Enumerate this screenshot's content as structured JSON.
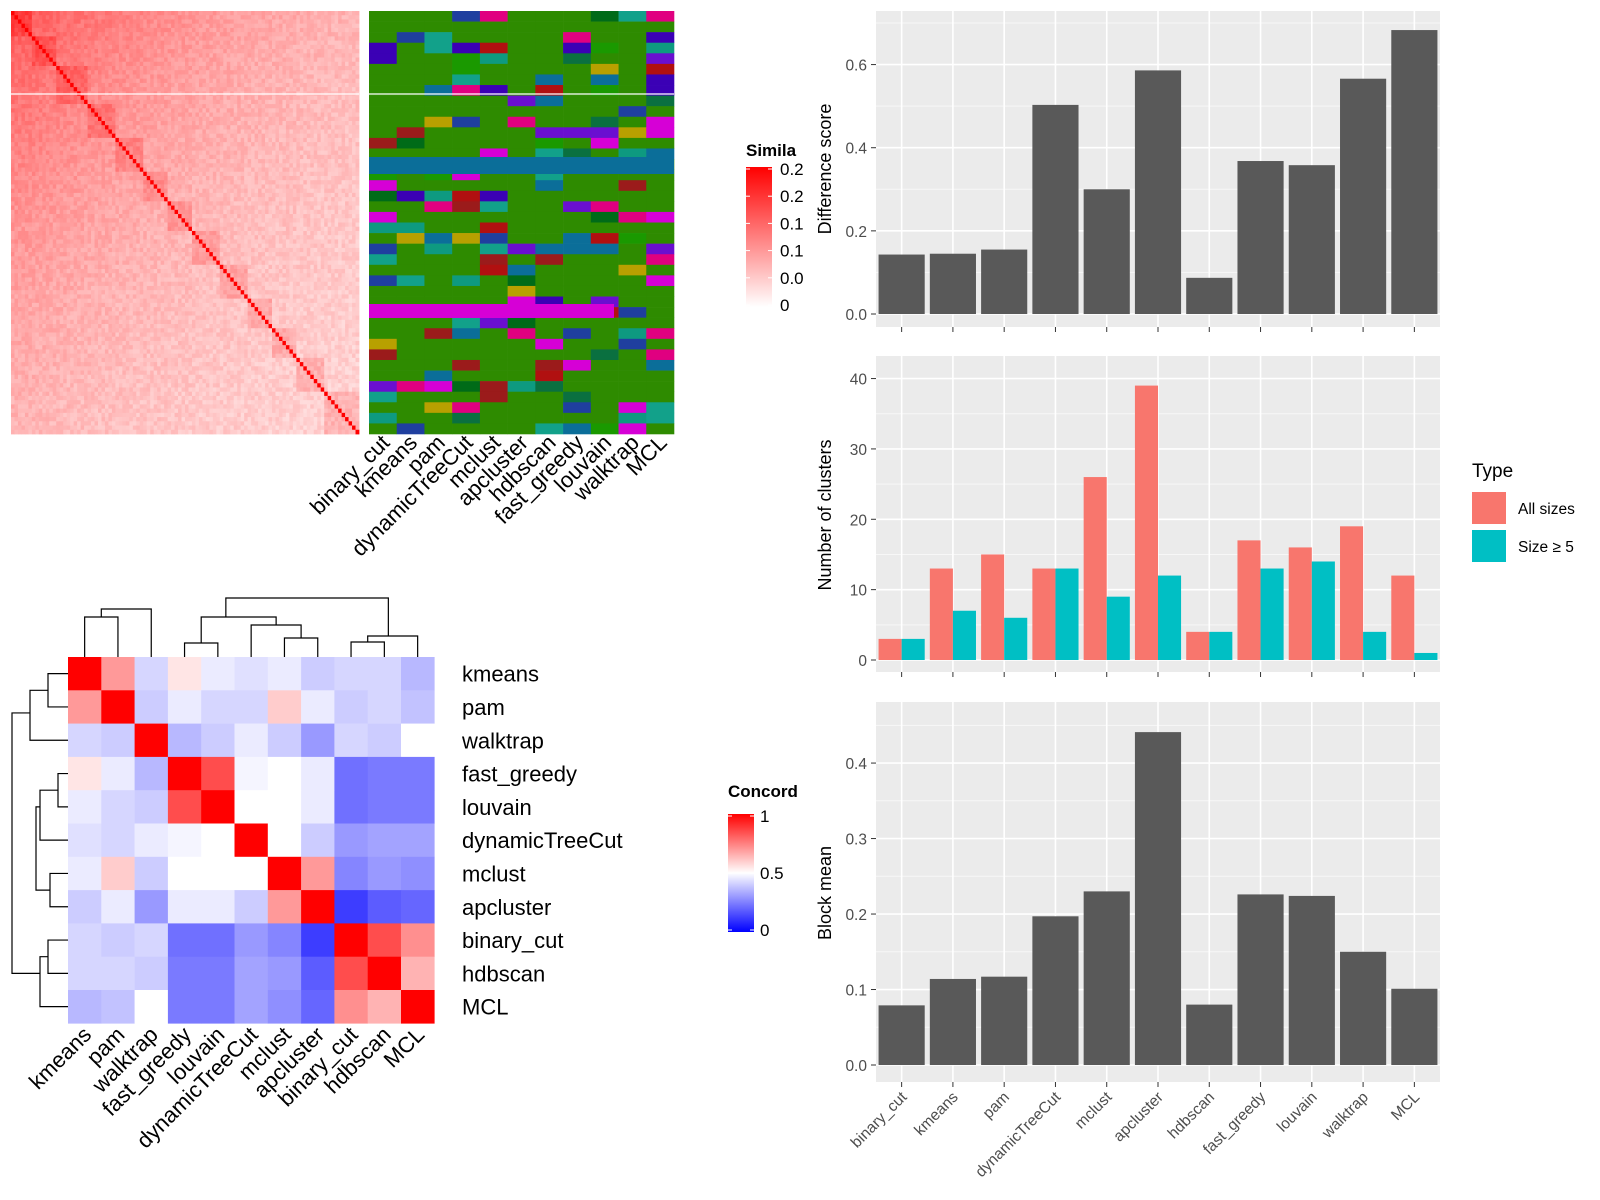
{
  "chart_data": [
    {
      "id": "similarity-heatmap",
      "type": "heatmap",
      "legend": {
        "title": "Simila",
        "ticks": [
          "0.2",
          "0.2",
          "0.1",
          "0.1",
          "0.0",
          "0"
        ],
        "placement": "right",
        "colors": [
          "#ffffff",
          "#ff0000"
        ]
      },
      "columns": [
        "binary_cut",
        "kmeans",
        "pam",
        "dynamicTreeCut",
        "mclust",
        "apcluster",
        "hdbscan",
        "fast_greedy",
        "louvain",
        "walktrap",
        "MCL"
      ],
      "cluster_palette": [
        "#2e8b00",
        "#1a9900",
        "#1f3f9f",
        "#3b00b5",
        "#d600d6",
        "#9b1b1b",
        "#b8a000",
        "#0e9a80",
        "#0b6e99",
        "#006b18",
        "#b11010",
        "#12a18a",
        "#e00080",
        "#6a0fd0",
        "#0a7040"
      ]
    },
    {
      "id": "concordance-heatmap",
      "type": "heatmap",
      "legend": {
        "title": "Concord",
        "ticks": [
          "1",
          "0.5",
          "0"
        ],
        "placement": "right",
        "colors": [
          "#0000ff",
          "#ffffff",
          "#ff0000"
        ]
      },
      "rows": [
        "kmeans",
        "pam",
        "walktrap",
        "fast_greedy",
        "louvain",
        "dynamicTreeCut",
        "mclust",
        "apcluster",
        "binary_cut",
        "hdbscan",
        "MCL"
      ],
      "columns": [
        "kmeans",
        "pam",
        "walktrap",
        "fast_greedy",
        "louvain",
        "dynamicTreeCut",
        "mclust",
        "apcluster",
        "binary_cut",
        "hdbscan",
        "MCL"
      ],
      "values": [
        [
          1.0,
          0.7,
          0.42,
          0.55,
          0.46,
          0.44,
          0.46,
          0.4,
          0.42,
          0.42,
          0.36
        ],
        [
          0.7,
          1.0,
          0.4,
          0.46,
          0.42,
          0.42,
          0.6,
          0.46,
          0.4,
          0.42,
          0.38
        ],
        [
          0.42,
          0.4,
          1.0,
          0.36,
          0.4,
          0.46,
          0.4,
          0.3,
          0.42,
          0.4,
          0.5
        ],
        [
          0.55,
          0.46,
          0.36,
          1.0,
          0.85,
          0.48,
          0.5,
          0.46,
          0.22,
          0.24,
          0.24
        ],
        [
          0.46,
          0.42,
          0.4,
          0.85,
          1.0,
          0.5,
          0.5,
          0.46,
          0.22,
          0.24,
          0.24
        ],
        [
          0.44,
          0.42,
          0.46,
          0.48,
          0.5,
          1.0,
          0.5,
          0.4,
          0.3,
          0.32,
          0.32
        ],
        [
          0.46,
          0.6,
          0.4,
          0.5,
          0.5,
          0.5,
          1.0,
          0.7,
          0.26,
          0.3,
          0.28
        ],
        [
          0.4,
          0.46,
          0.3,
          0.46,
          0.46,
          0.4,
          0.7,
          1.0,
          0.12,
          0.18,
          0.2
        ],
        [
          0.42,
          0.4,
          0.42,
          0.22,
          0.22,
          0.3,
          0.26,
          0.12,
          1.0,
          0.85,
          0.72
        ],
        [
          0.42,
          0.42,
          0.4,
          0.24,
          0.24,
          0.32,
          0.3,
          0.18,
          0.85,
          1.0,
          0.65
        ],
        [
          0.36,
          0.38,
          0.5,
          0.24,
          0.24,
          0.32,
          0.28,
          0.2,
          0.72,
          0.65,
          1.0
        ]
      ]
    },
    {
      "id": "difference-score",
      "type": "bar",
      "categories": [
        "binary_cut",
        "kmeans",
        "pam",
        "dynamicTreeCut",
        "mclust",
        "apcluster",
        "hdbscan",
        "fast_greedy",
        "louvain",
        "walktrap",
        "MCL"
      ],
      "values": [
        0.143,
        0.145,
        0.155,
        0.503,
        0.3,
        0.586,
        0.087,
        0.368,
        0.358,
        0.566,
        0.683
      ],
      "ylabel": "Difference score",
      "ylim": [
        0,
        0.7
      ],
      "yticks": [
        0.0,
        0.2,
        0.4,
        0.6
      ],
      "ytick_labels": [
        "0.0",
        "0.2",
        "0.4",
        "0.6"
      ],
      "bar_color": "#595959"
    },
    {
      "id": "number-of-clusters",
      "type": "bar",
      "categories": [
        "binary_cut",
        "kmeans",
        "pam",
        "dynamicTreeCut",
        "mclust",
        "apcluster",
        "hdbscan",
        "fast_greedy",
        "louvain",
        "walktrap",
        "MCL"
      ],
      "series": [
        {
          "name": "All sizes",
          "color": "#f8766d",
          "values": [
            3,
            13,
            15,
            13,
            26,
            39,
            4,
            17,
            16,
            19,
            12
          ]
        },
        {
          "name": "Size ≥ 5",
          "color": "#00bfc4",
          "values": [
            3,
            7,
            6,
            13,
            9,
            12,
            4,
            13,
            14,
            4,
            1
          ]
        }
      ],
      "ylabel": "Number of clusters",
      "ylim": [
        0,
        41.5
      ],
      "yticks": [
        0,
        10,
        20,
        30,
        40
      ],
      "ytick_labels": [
        "0",
        "10",
        "20",
        "30",
        "40"
      ],
      "legend": {
        "title": "Type",
        "placement": "right"
      }
    },
    {
      "id": "block-mean",
      "type": "bar",
      "categories": [
        "binary_cut",
        "kmeans",
        "pam",
        "dynamicTreeCut",
        "mclust",
        "apcluster",
        "hdbscan",
        "fast_greedy",
        "louvain",
        "walktrap",
        "MCL"
      ],
      "values": [
        0.079,
        0.114,
        0.117,
        0.197,
        0.23,
        0.441,
        0.08,
        0.226,
        0.224,
        0.15,
        0.101
      ],
      "ylabel": "Block mean",
      "ylim": [
        0,
        0.465
      ],
      "yticks": [
        0.0,
        0.1,
        0.2,
        0.3,
        0.4
      ],
      "ytick_labels": [
        "0.0",
        "0.1",
        "0.2",
        "0.3",
        "0.4"
      ],
      "bar_color": "#595959"
    }
  ]
}
